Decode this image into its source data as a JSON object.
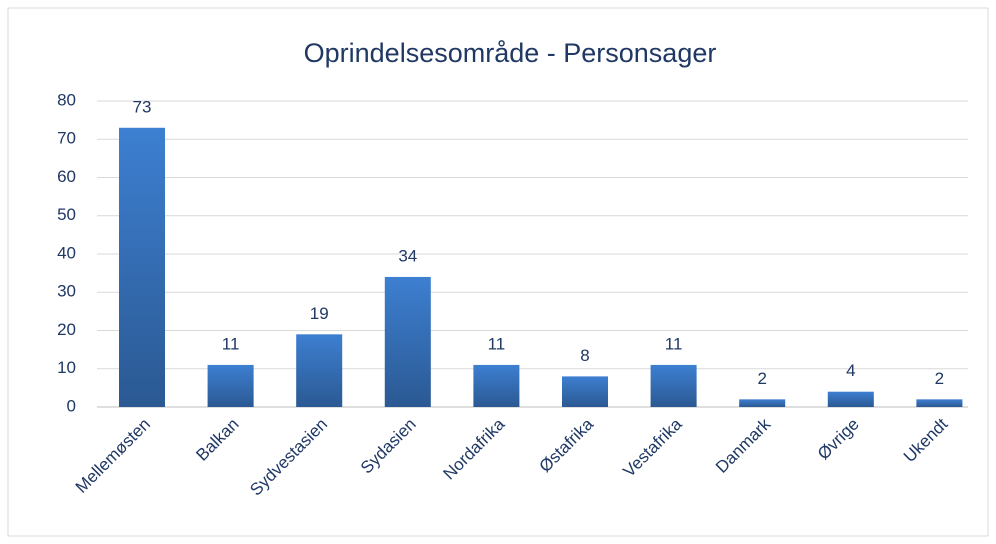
{
  "chart_data": {
    "type": "bar",
    "title": "Oprindelsesområde - Personsager",
    "categories": [
      "Mellemøsten",
      "Balkan",
      "Sydvestasien",
      "Sydasien",
      "Nordafrika",
      "Østafrika",
      "Vestafrika",
      "Danmark",
      "Øvrige",
      "Ukendt"
    ],
    "values": [
      73,
      11,
      19,
      34,
      11,
      8,
      11,
      2,
      4,
      2
    ],
    "color": "#3d7fd1",
    "ylim": [
      0,
      80
    ],
    "yticks": [
      0,
      10,
      20,
      30,
      40,
      50,
      60,
      70,
      80
    ],
    "grid": true
  }
}
